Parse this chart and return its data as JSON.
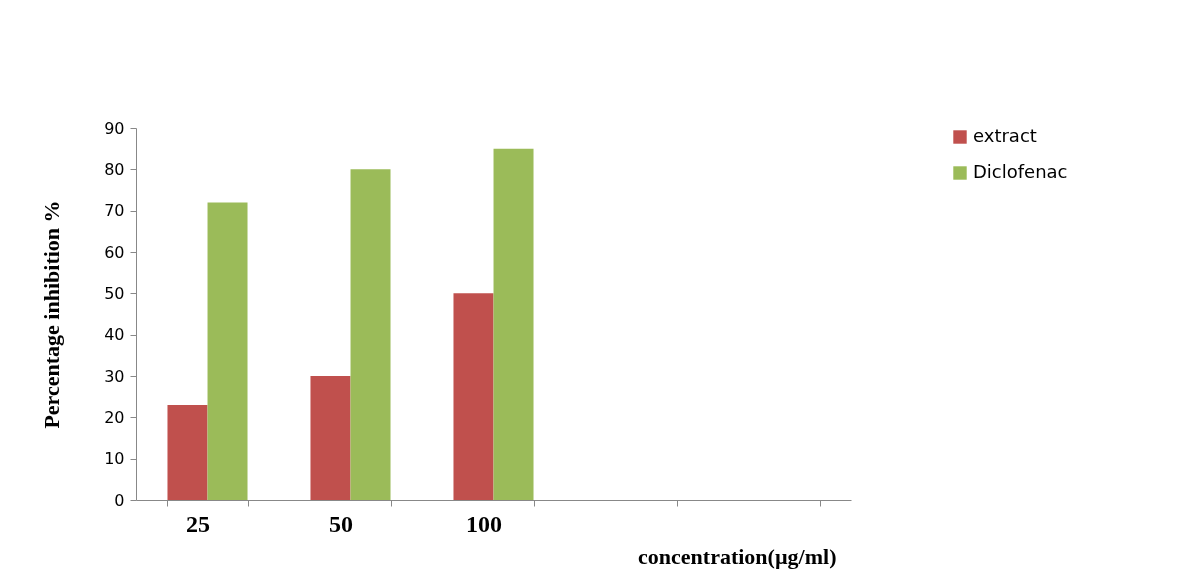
{
  "chart_data": {
    "type": "bar",
    "categories": [
      "25",
      "50",
      "100",
      null,
      null
    ],
    "xlabel": "concentration(µg/ml)",
    "ylabel": "Percentage inhibition %",
    "ylim": [
      0,
      90
    ],
    "yticks": [
      0,
      10,
      20,
      30,
      40,
      50,
      60,
      70,
      80,
      90
    ],
    "grid": false,
    "legend": "right",
    "series": [
      {
        "name": "extract",
        "color": "#c0504d",
        "values": [
          23,
          30,
          50,
          null,
          null
        ]
      },
      {
        "name": "Diclofenac",
        "color": "#9bbb59",
        "values": [
          72,
          80,
          85,
          null,
          null
        ]
      }
    ]
  }
}
